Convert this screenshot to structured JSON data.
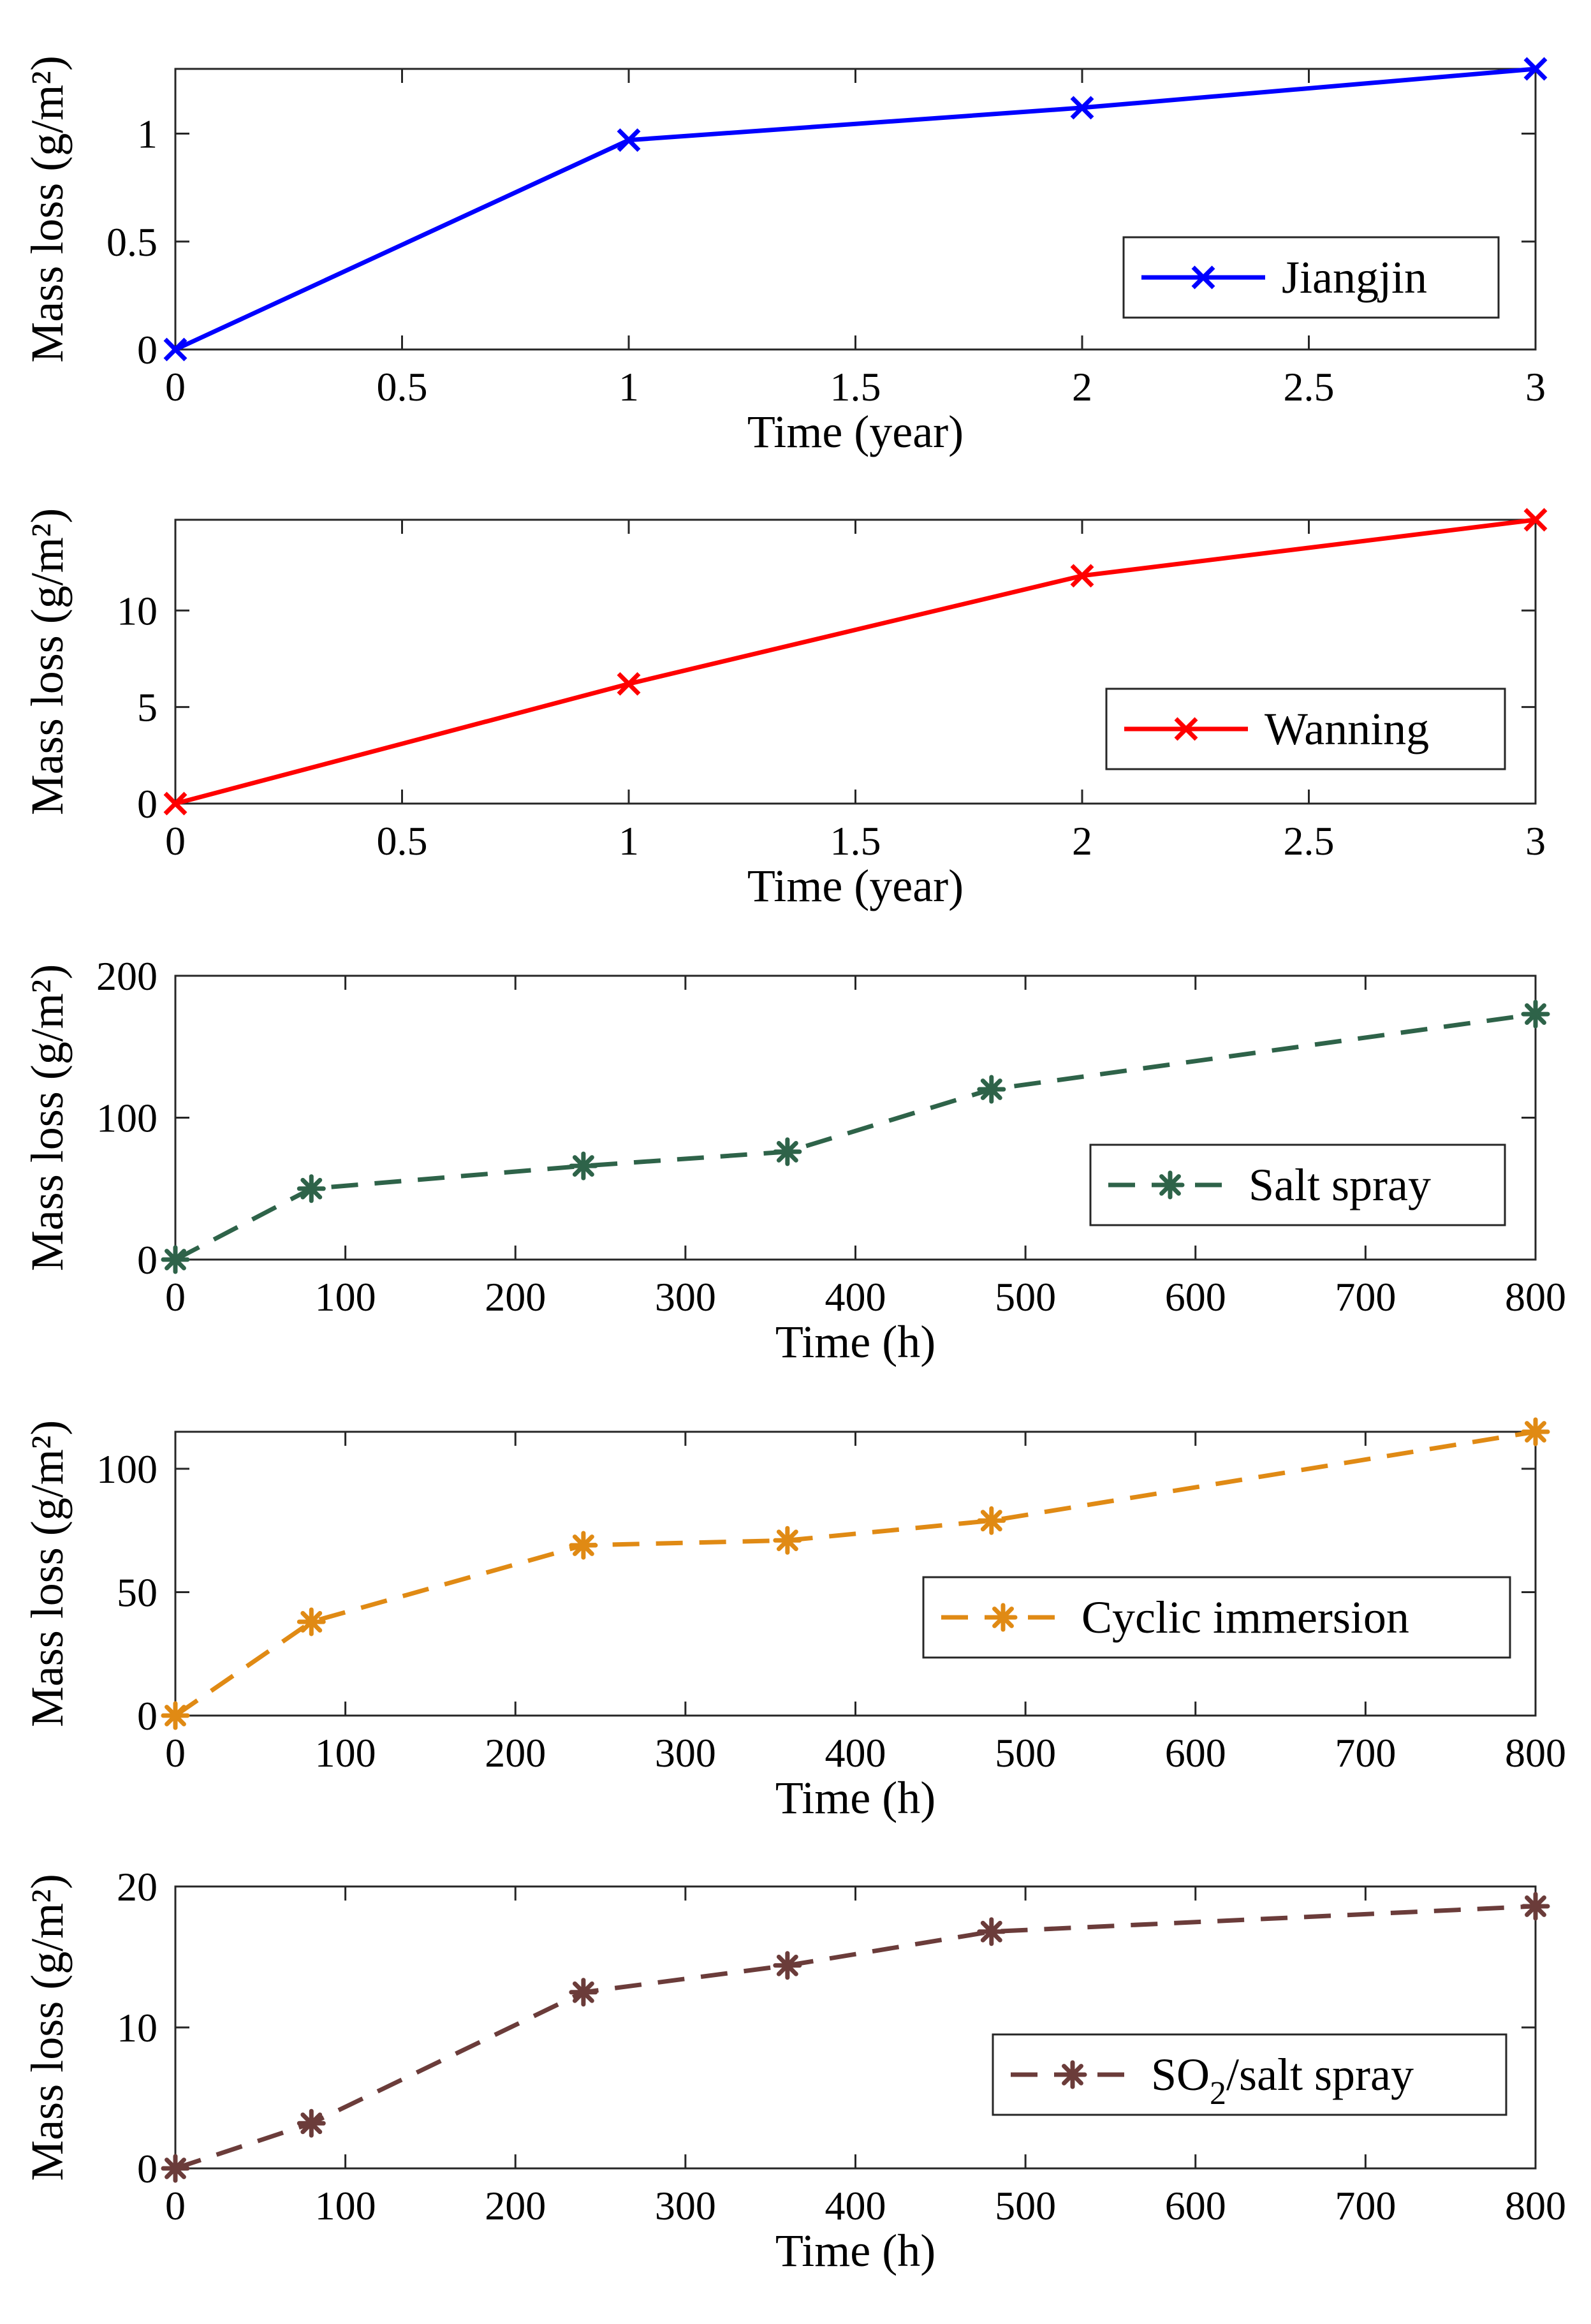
{
  "chart_data": [
    {
      "type": "line",
      "x": [
        0,
        1,
        2,
        3
      ],
      "series": [
        {
          "name": "Jiangjin",
          "values": [
            0,
            0.97,
            1.12,
            1.3
          ],
          "color": "#0000ff",
          "marker": "x",
          "dash": "solid"
        }
      ],
      "xlabel": "Time (year)",
      "ylabel": "Mass loss (g/m²)",
      "xlim": [
        0,
        3
      ],
      "ylim": [
        0,
        1.3
      ],
      "xticks": [
        0,
        0.5,
        1,
        1.5,
        2,
        2.5,
        3
      ],
      "xtick_labels": [
        "0",
        "0.5",
        "1",
        "1.5",
        "2",
        "2.5",
        "3"
      ],
      "yticks": [
        0,
        0.5,
        1
      ],
      "ytick_labels": [
        "0",
        "0.5",
        "1"
      ],
      "legend_position": "center-right",
      "legend_labels": [
        "Jiangjin"
      ],
      "grid": false
    },
    {
      "type": "line",
      "x": [
        0,
        1,
        2,
        3
      ],
      "series": [
        {
          "name": "Wanning",
          "values": [
            0,
            6.2,
            11.8,
            14.7
          ],
          "color": "#ff0000",
          "marker": "x",
          "dash": "solid"
        }
      ],
      "xlabel": "Time (year)",
      "ylabel": "Mass loss (g/m²)",
      "xlim": [
        0,
        3
      ],
      "ylim": [
        0,
        14.7
      ],
      "xticks": [
        0,
        0.5,
        1,
        1.5,
        2,
        2.5,
        3
      ],
      "xtick_labels": [
        "0",
        "0.5",
        "1",
        "1.5",
        "2",
        "2.5",
        "3"
      ],
      "yticks": [
        0,
        5,
        10
      ],
      "ytick_labels": [
        "0",
        "5",
        "10"
      ],
      "legend_position": "center-right",
      "legend_labels": [
        "Wanning"
      ],
      "grid": false
    },
    {
      "type": "line",
      "x": [
        0,
        80,
        240,
        360,
        480,
        800
      ],
      "series": [
        {
          "name": "Salt spray",
          "values": [
            0,
            50,
            66,
            76,
            120,
            173
          ],
          "color": "#2e6349",
          "marker": "asterisk",
          "dash": "dashed"
        }
      ],
      "xlabel": "Time (h)",
      "ylabel": "Mass loss (g/m²)",
      "xlim": [
        0,
        800
      ],
      "ylim": [
        0,
        200
      ],
      "xticks": [
        0,
        100,
        200,
        300,
        400,
        500,
        600,
        700,
        800
      ],
      "xtick_labels": [
        "0",
        "100",
        "200",
        "300",
        "400",
        "500",
        "600",
        "700",
        "800"
      ],
      "yticks": [
        0,
        100,
        200
      ],
      "ytick_labels": [
        "0",
        "100",
        "200"
      ],
      "legend_position": "center-right",
      "legend_labels": [
        "Salt spray"
      ],
      "grid": false
    },
    {
      "type": "line",
      "x": [
        0,
        80,
        240,
        360,
        480,
        800
      ],
      "series": [
        {
          "name": "Cyclic immersion",
          "values": [
            0,
            38,
            69,
            71,
            79,
            115
          ],
          "color": "#e08a14",
          "marker": "asterisk",
          "dash": "dashed"
        }
      ],
      "xlabel": "Time (h)",
      "ylabel": "Mass loss (g/m²)",
      "xlim": [
        0,
        800
      ],
      "ylim": [
        0,
        115
      ],
      "xticks": [
        0,
        100,
        200,
        300,
        400,
        500,
        600,
        700,
        800
      ],
      "xtick_labels": [
        "0",
        "100",
        "200",
        "300",
        "400",
        "500",
        "600",
        "700",
        "800"
      ],
      "yticks": [
        0,
        50,
        100
      ],
      "ytick_labels": [
        "0",
        "50",
        "100"
      ],
      "legend_position": "center-right",
      "legend_labels": [
        "Cyclic immersion"
      ],
      "grid": false
    },
    {
      "type": "line",
      "x": [
        0,
        80,
        240,
        360,
        480,
        800
      ],
      "series": [
        {
          "name": "SO2/salt spray",
          "values": [
            0,
            3.2,
            12.5,
            14.4,
            16.8,
            18.6
          ],
          "color": "#6b3c3a",
          "marker": "asterisk",
          "dash": "dashed"
        }
      ],
      "xlabel": "Time (h)",
      "ylabel": "Mass loss (g/m²)",
      "xlim": [
        0,
        800
      ],
      "ylim": [
        0,
        20
      ],
      "xticks": [
        0,
        100,
        200,
        300,
        400,
        500,
        600,
        700,
        800
      ],
      "xtick_labels": [
        "0",
        "100",
        "200",
        "300",
        "400",
        "500",
        "600",
        "700",
        "800"
      ],
      "yticks": [
        0,
        10,
        20
      ],
      "ytick_labels": [
        "0",
        "10",
        "20"
      ],
      "legend_position": "center-right",
      "legend_labels": [
        "SO",
        "2",
        "/salt spray"
      ],
      "grid": false
    }
  ]
}
